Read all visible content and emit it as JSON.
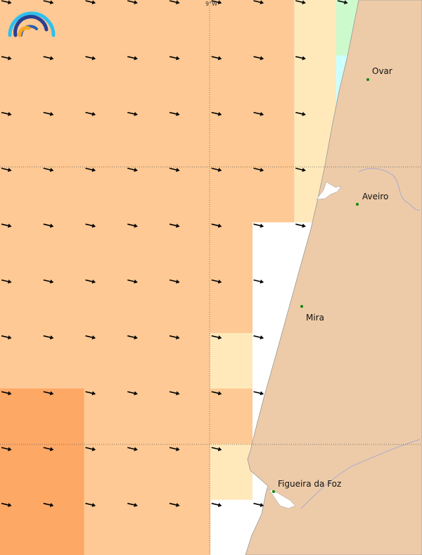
{
  "map": {
    "graticule_label": "9°W",
    "colors": {
      "land": "#edcba8",
      "sea_nodata": "#ffffff",
      "coast_line": "#999999",
      "river": "#aaaacc",
      "city_dot": "#0a8a0a"
    },
    "cell_colors": {
      "o": "#fec994",
      "d": "#fea866",
      "y": "#ffe9bb",
      "g": "#ccfacc",
      "c": "#ccffff",
      "b": "#55aaff"
    },
    "cells": [
      "oooooooyg",
      "oooooooyc",
      "oooooooyb",
      "oooooooy.",
      "oooooo...",
      "oooooo...",
      "oooooy...",
      "ddoooo...",
      "ddoooo...",
      "ddoooy...",
      "ddooo...."
    ],
    "arrow_icon": "wind-direction-arrow",
    "logo_icon": "rainbow-arcs-logo",
    "cities": [
      {
        "name": "Ovar"
      },
      {
        "name": "Aveiro"
      },
      {
        "name": "Mira"
      },
      {
        "name": "Figueira da Foz"
      }
    ]
  }
}
